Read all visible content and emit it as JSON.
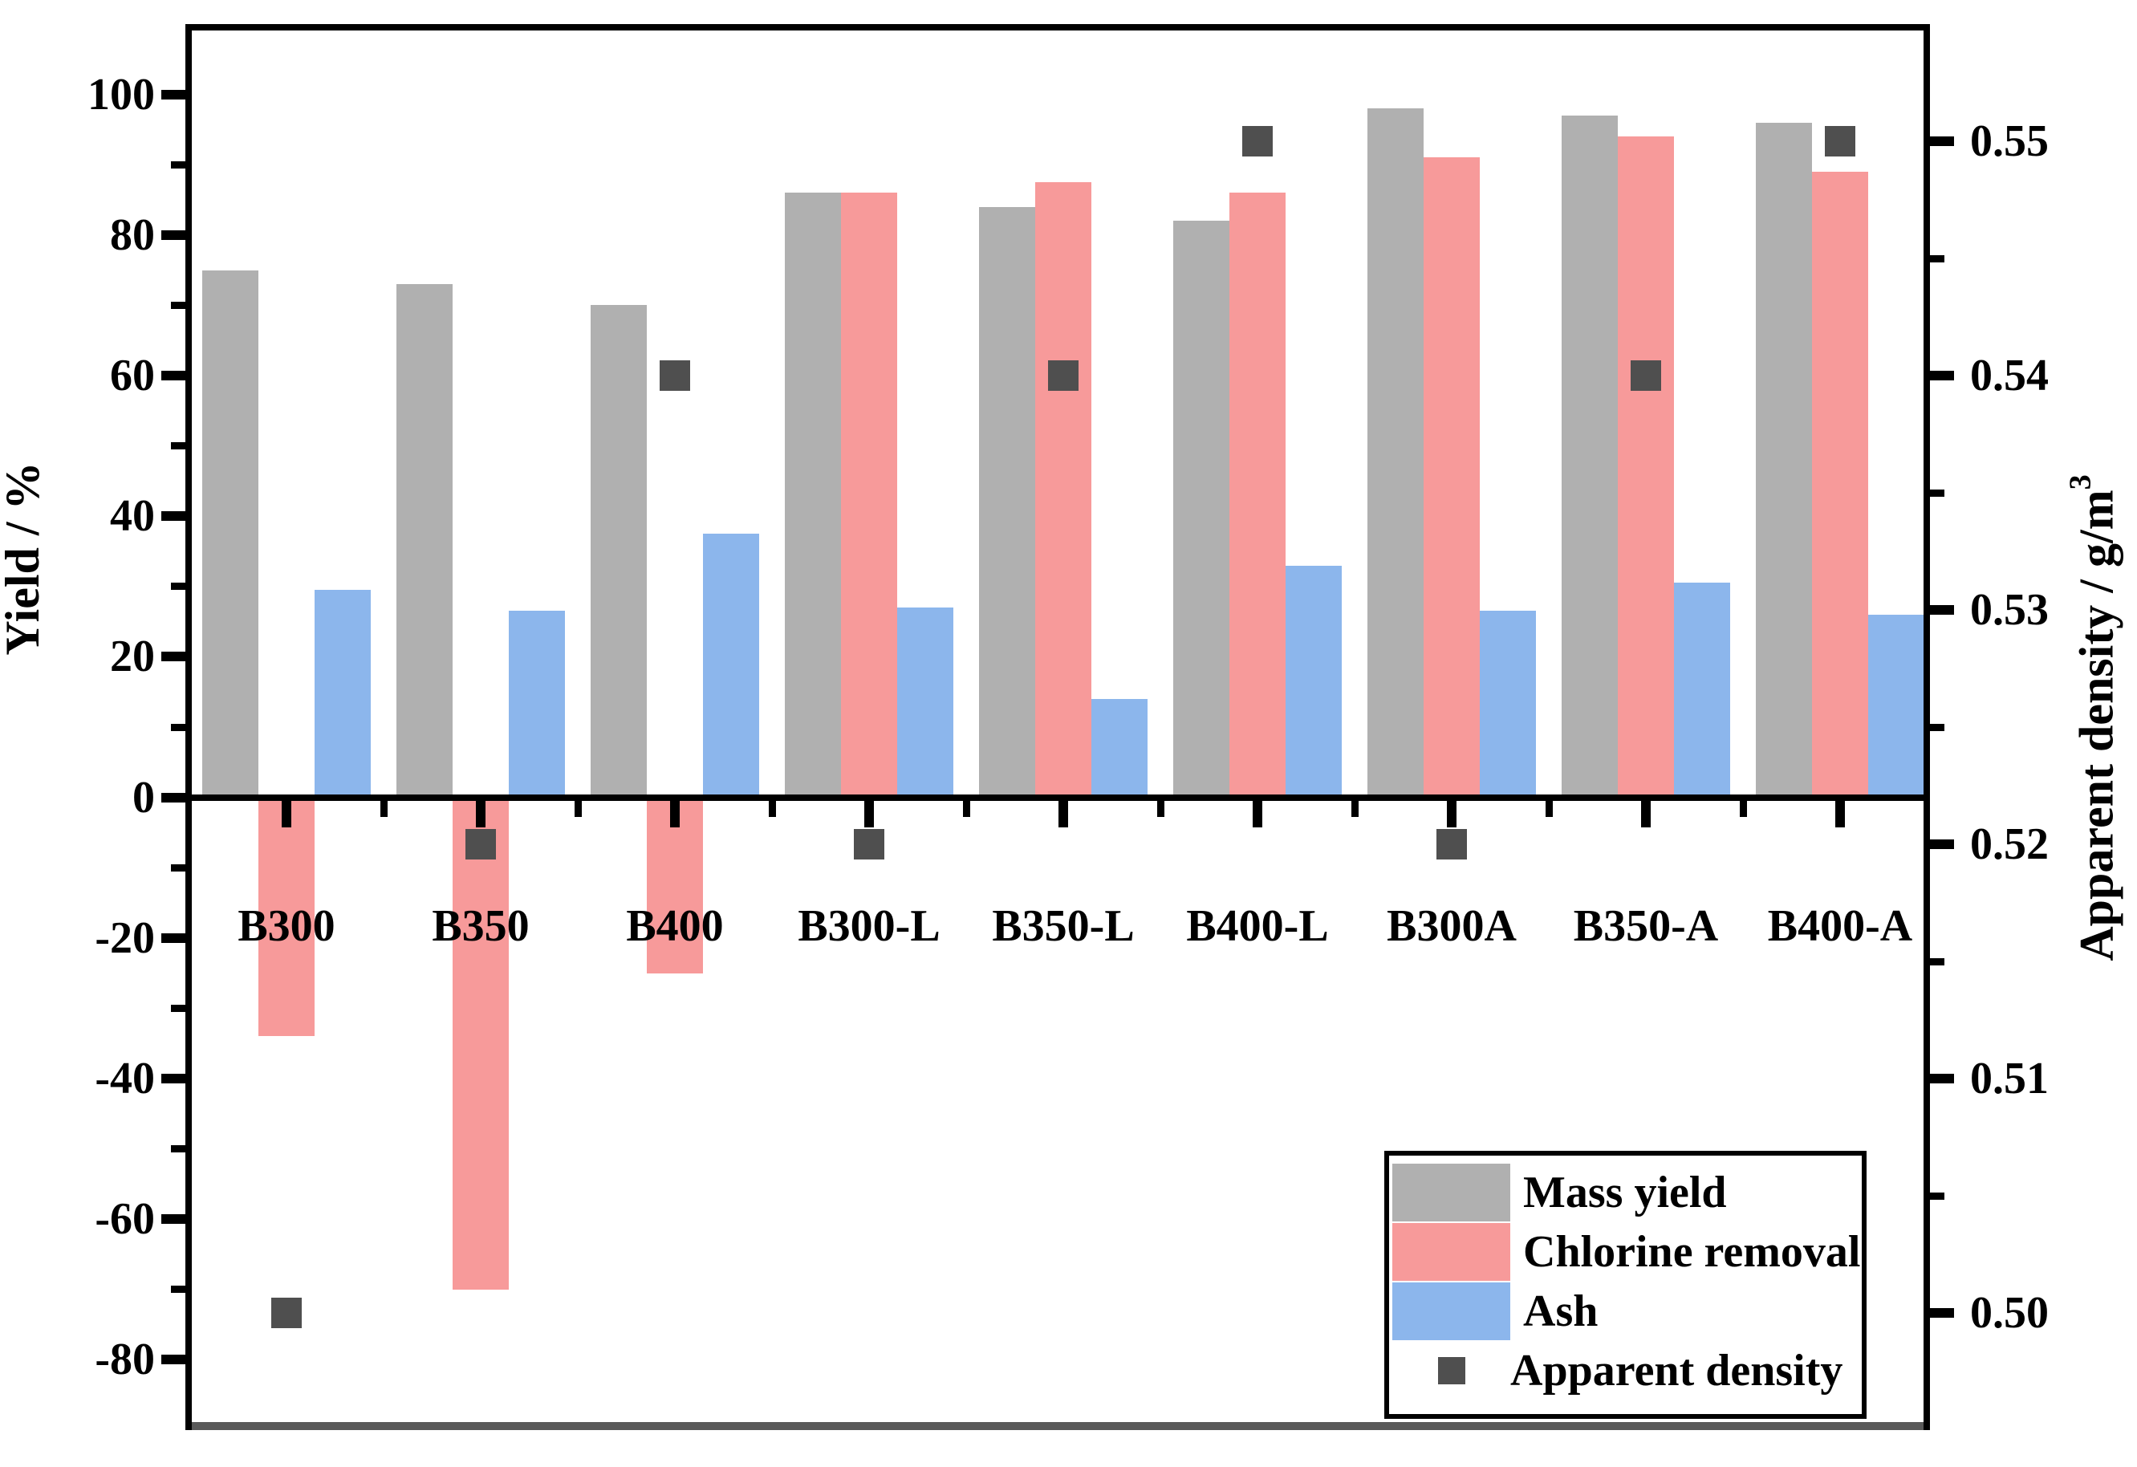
{
  "figure": {
    "background": "#ffffff",
    "left_axis_title": "Yield / %",
    "right_axis_title_main": "Apparent density / g/m",
    "right_axis_title_sup": "3"
  },
  "chart_data": {
    "type": "bar",
    "title": "",
    "xlabel": "",
    "grid": false,
    "categories": [
      "B300",
      "B350",
      "B400",
      "B300-L",
      "B350-L",
      "B400-L",
      "B300A",
      "B350-A",
      "B400-A"
    ],
    "series": [
      {
        "name": "Mass yield",
        "axis": "left",
        "type": "bar",
        "color": "#b0b0b0",
        "values": [
          75,
          73,
          70,
          86,
          84,
          82,
          98,
          97,
          96
        ]
      },
      {
        "name": "Chlorine removal",
        "axis": "left",
        "type": "bar",
        "color": "#f79a9a",
        "values": [
          -34,
          -70,
          -25,
          86,
          87.5,
          86,
          91,
          94,
          89
        ]
      },
      {
        "name": "Ash",
        "axis": "left",
        "type": "bar",
        "color": "#8cb6ec",
        "values": [
          29.5,
          26.5,
          37.5,
          27,
          14,
          33,
          26.5,
          30.5,
          26
        ]
      },
      {
        "name": "Apparent density",
        "axis": "right",
        "type": "scatter-square",
        "color": "#4f4f4f",
        "values": [
          0.5,
          0.52,
          0.54,
          0.52,
          0.54,
          0.55,
          0.52,
          0.54,
          0.55
        ]
      }
    ],
    "left_axis": {
      "label": "Yield / %",
      "range": [
        -90,
        110
      ],
      "major_ticks": [
        100,
        80,
        60,
        40,
        20,
        0,
        -20,
        -40,
        -60,
        -80
      ],
      "minor_ticks": [
        90,
        70,
        50,
        30,
        10,
        -10,
        -30,
        -50,
        -70
      ]
    },
    "right_axis": {
      "label_main": "Apparent density / g/m",
      "label_sup": "3",
      "range": [
        0.495,
        0.555
      ],
      "major_ticks": [
        "0.55",
        "0.54",
        "0.53",
        "0.52",
        "0.51",
        "0.50"
      ],
      "major_tick_values": [
        0.55,
        0.54,
        0.53,
        0.52,
        0.51,
        0.5
      ],
      "minor_tick_values": [
        0.545,
        0.535,
        0.525,
        0.515,
        0.505
      ]
    },
    "legend": {
      "position": "bottom-right",
      "items": [
        {
          "label": "Mass yield",
          "swatch": "bar",
          "color": "#b0b0b0"
        },
        {
          "label": "Chlorine removal",
          "swatch": "bar",
          "color": "#f79a9a"
        },
        {
          "label": "Ash",
          "swatch": "bar",
          "color": "#8cb6ec"
        },
        {
          "label": "Apparent density",
          "swatch": "square",
          "color": "#4f4f4f"
        }
      ]
    },
    "style": {
      "bottom_spine_color": "#595959",
      "marker_color": "#4f4f4f"
    }
  }
}
